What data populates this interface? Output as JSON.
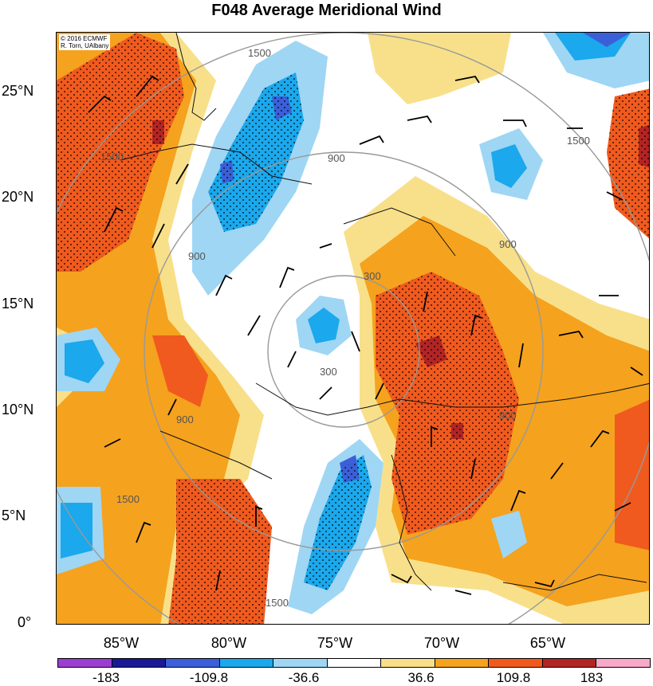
{
  "title": "F048 Average Meridional Wind",
  "credit": {
    "line1": "© 2016 ECMWF",
    "line2": "R. Torn, UAlbany"
  },
  "lat_labels": [
    "25°N",
    "20°N",
    "15°N",
    "10°N",
    "5°N",
    "0°"
  ],
  "lon_labels": [
    "85°W",
    "80°W",
    "75°W",
    "70°W",
    "65°W"
  ],
  "colorbar": {
    "colors": [
      "#9b3fd0",
      "#1a1a96",
      "#3b5fd8",
      "#1ba8ec",
      "#9fd6f4",
      "#ffffff",
      "#f8e08a",
      "#f5a21e",
      "#f05a1e",
      "#b32424",
      "#f8a8c8"
    ],
    "labels": [
      "-183",
      "-109.8",
      "-36.6",
      "36.6",
      "109.8",
      "183"
    ]
  },
  "contour_labels": [
    "1500",
    "900",
    "300",
    "300",
    "900",
    "900",
    "1500",
    "1500",
    "1500",
    "1500",
    "900",
    "900"
  ],
  "palette": {
    "dark_blue": "#3b5fd8",
    "blue": "#1ba8ec",
    "light_blue": "#9fd6f4",
    "light_yellow": "#f8e08a",
    "orange": "#f5a21e",
    "red_orange": "#f05a1e",
    "dark_red": "#b32424",
    "range_ring": "#999999"
  }
}
